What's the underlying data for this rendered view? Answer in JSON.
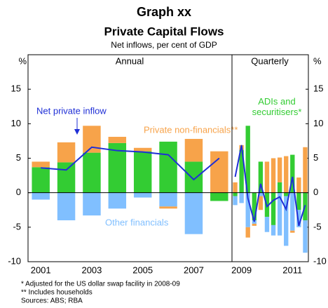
{
  "header": {
    "title": "Graph xx",
    "subtitle_main": "Private Capital Flows",
    "subtitle": "Net inflows, per cent of GDP"
  },
  "footnotes": [
    "*   Adjusted for the US dollar swap facility in 2008-09",
    "**  Includes households",
    "Sources: ABS; RBA"
  ],
  "chart_data": [
    {
      "type": "bar",
      "title": "Annual",
      "ylabel": "%",
      "ylim": [
        -10,
        20
      ],
      "yticks": [
        -10,
        -5,
        0,
        5,
        10,
        15
      ],
      "categories": [
        "2001",
        null,
        "2003",
        null,
        "2005",
        null,
        "2007",
        null
      ],
      "series": [
        {
          "name": "ADIs and securitisers*",
          "color": "#33cc33",
          "values": [
            3.7,
            4.4,
            5.8,
            7.2,
            6.0,
            7.4,
            4.5,
            -1.2
          ]
        },
        {
          "name": "Other financials",
          "color": "#80bfff",
          "values": [
            -1.0,
            -4.0,
            -3.3,
            -2.3,
            -0.7,
            -2.0,
            -6.0,
            0
          ]
        },
        {
          "name": "Private non-financials**",
          "color": "#f7a34a",
          "values": [
            0.8,
            2.9,
            3.9,
            0.9,
            0.5,
            -0.3,
            3.3,
            6.0
          ]
        },
        {
          "name": "Net private inflow",
          "type": "line",
          "color": "#1f2fd6",
          "values": [
            3.6,
            3.3,
            6.6,
            6.1,
            5.9,
            5.5,
            1.9,
            5.0
          ]
        }
      ]
    },
    {
      "type": "bar",
      "title": "Quarterly",
      "ylabel": "%",
      "ylim": [
        -10,
        20
      ],
      "yticks": [
        -10,
        -5,
        0,
        5,
        10,
        15
      ],
      "categories": [
        null,
        "2009",
        null,
        null,
        null,
        null,
        null,
        null,
        null,
        "2011",
        null,
        null
      ],
      "series": [
        {
          "color": "#33cc33",
          "values": [
            -0.5,
            6.2,
            9.7,
            -4.0,
            4.5,
            -3.5,
            -4.7,
            1.5,
            -0.5,
            5.5,
            -2.5,
            -4.0
          ]
        },
        {
          "color": "#80bfff",
          "values": [
            -1.3,
            -1.5,
            -5.0,
            -0.5,
            -0.5,
            -2.2,
            -1.5,
            -6.2,
            -7.2,
            -5.5,
            -2.5,
            -4.7
          ]
        },
        {
          "color": "#f7a34a",
          "values": [
            1.5,
            0.7,
            -1.5,
            -0.3,
            -2.0,
            4.5,
            5.0,
            3.6,
            5.3,
            -0.3,
            2.2,
            6.6
          ]
        },
        {
          "type": "line",
          "color": "#1f2fd6",
          "values": [
            2.3,
            6.9,
            -0.8,
            -4.2,
            1.3,
            -2.0,
            -1.1,
            -0.6,
            -2.4,
            2.3,
            -4.8,
            -1.8
          ]
        }
      ]
    }
  ]
}
